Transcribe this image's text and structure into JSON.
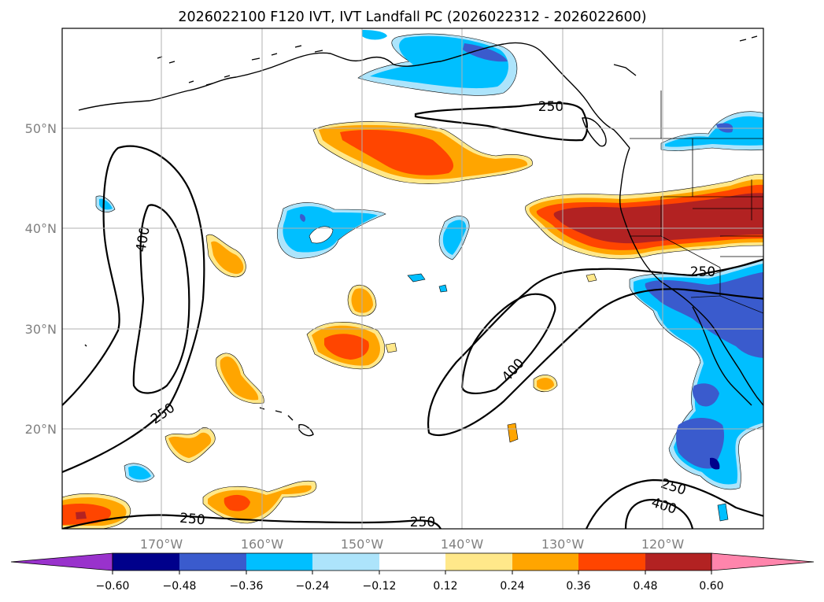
{
  "title": "2026022100 F120 IVT, IVT Landfall PC (2026022312 - 2026022600)",
  "lon_labels": [
    "170°W",
    "160°W",
    "150°W",
    "140°W",
    "130°W",
    "120°W"
  ],
  "lat_labels": [
    "50°N",
    "40°N",
    "30°N",
    "20°N"
  ],
  "contour_labels": [
    "250",
    "400",
    "250",
    "250",
    "400",
    "250",
    "250",
    "250",
    "400"
  ],
  "colorbar": {
    "ticks": [
      "−0.60",
      "−0.48",
      "−0.36",
      "−0.24",
      "−0.12",
      "0.12",
      "0.24",
      "0.36",
      "0.48",
      "0.60"
    ],
    "colors": {
      "under": "#9932cc",
      "c1": "#00008b",
      "c2": "#3a5bcd",
      "c3": "#00bfff",
      "c4": "#ade4fb",
      "c5": "#ffffff",
      "c6": "#ffe88a",
      "c7": "#ffa500",
      "c8": "#ff4500",
      "c9": "#b22222",
      "over": "#ff85ac"
    }
  }
}
